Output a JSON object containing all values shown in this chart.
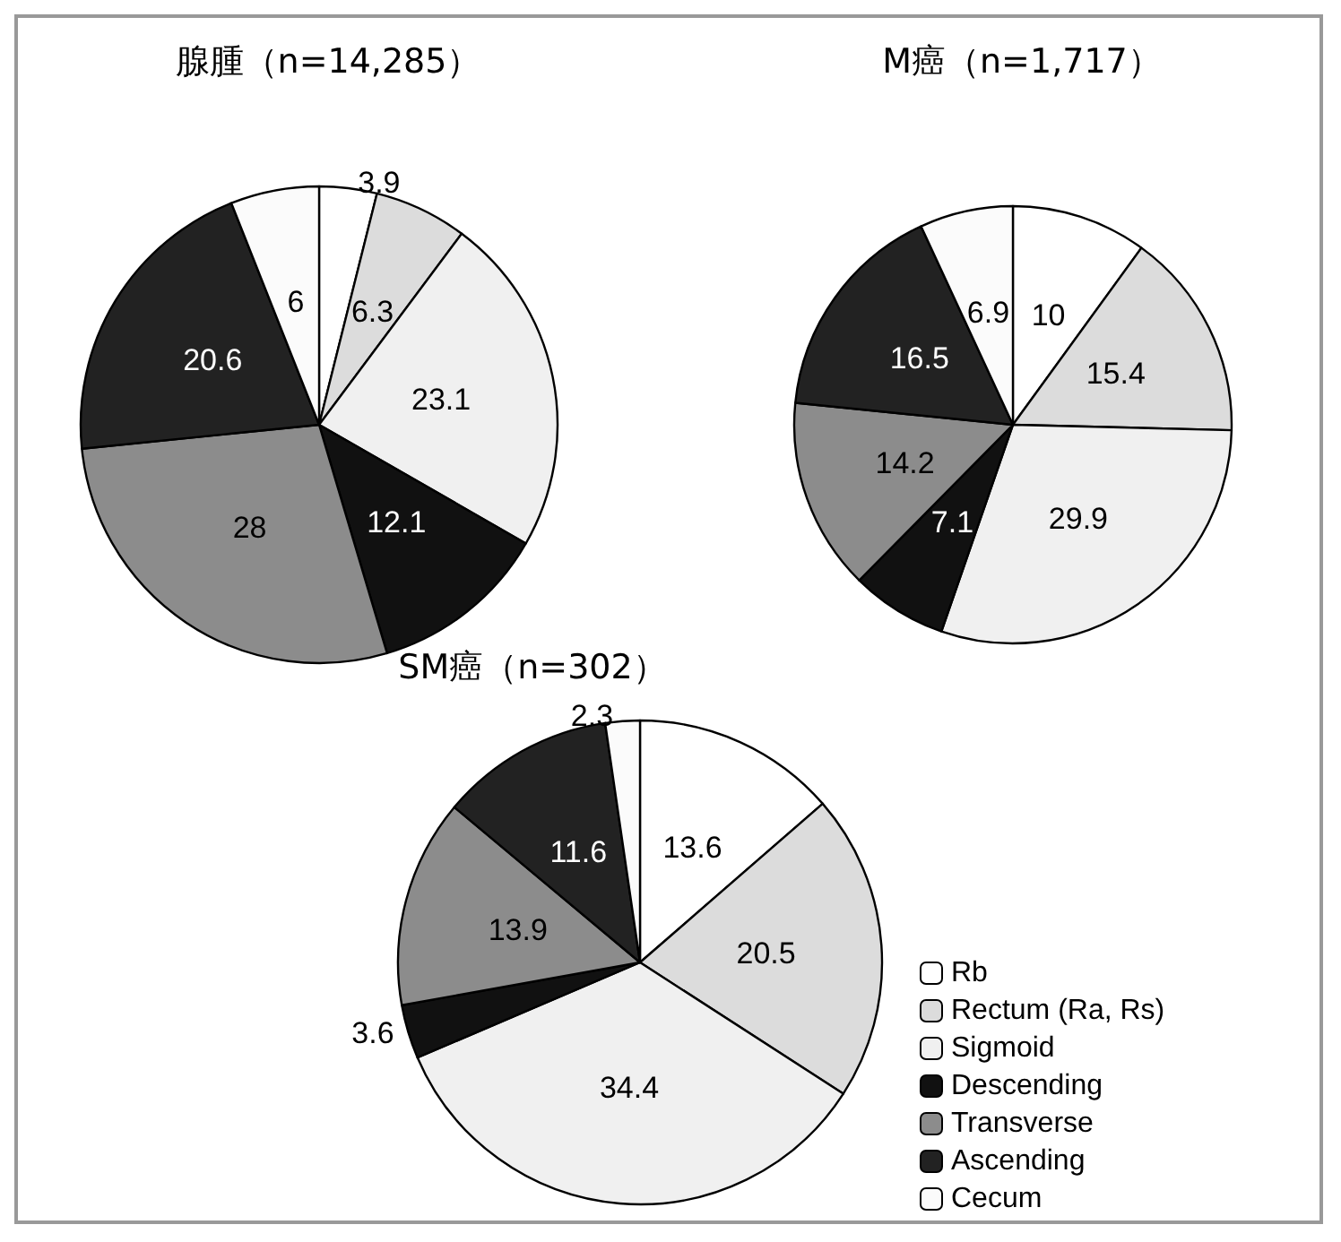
{
  "chart_data": [
    {
      "type": "pie",
      "title": "腺腫（n=14,285）",
      "categories": [
        null,
        null,
        null,
        null,
        null,
        null,
        null
      ],
      "values": [
        3.9,
        6.3,
        23.1,
        12.1,
        28,
        20.6,
        6
      ],
      "colors": [
        "#ffffff",
        "#dcdcdc",
        "#f0f0f0",
        "#111111",
        "#8c8c8c",
        "#222222",
        "#fbfbfb"
      ],
      "data_labels": true,
      "legend": false
    },
    {
      "type": "pie",
      "title": "M癌（n=1,717）",
      "categories": [
        null,
        null,
        null,
        null,
        null,
        null,
        null
      ],
      "values": [
        10,
        15.4,
        29.9,
        7.1,
        14.2,
        16.5,
        6.9
      ],
      "colors": [
        "#ffffff",
        "#dcdcdc",
        "#f0f0f0",
        "#111111",
        "#8c8c8c",
        "#222222",
        "#fbfbfb"
      ],
      "data_labels": true,
      "legend": false
    },
    {
      "type": "pie",
      "title": "SM癌（n=302）",
      "categories": [
        "Rb",
        "Rectum (Ra, Rs)",
        "Sigmoid",
        "Descending",
        "Transverse",
        "Ascending",
        "Cecum"
      ],
      "values": [
        13.6,
        20.5,
        34.4,
        3.6,
        13.9,
        11.6,
        2.3
      ],
      "colors": [
        "#ffffff",
        "#dcdcdc",
        "#f0f0f0",
        "#111111",
        "#8c8c8c",
        "#222222",
        "#fbfbfb"
      ],
      "data_labels": true,
      "legend": "right"
    }
  ]
}
